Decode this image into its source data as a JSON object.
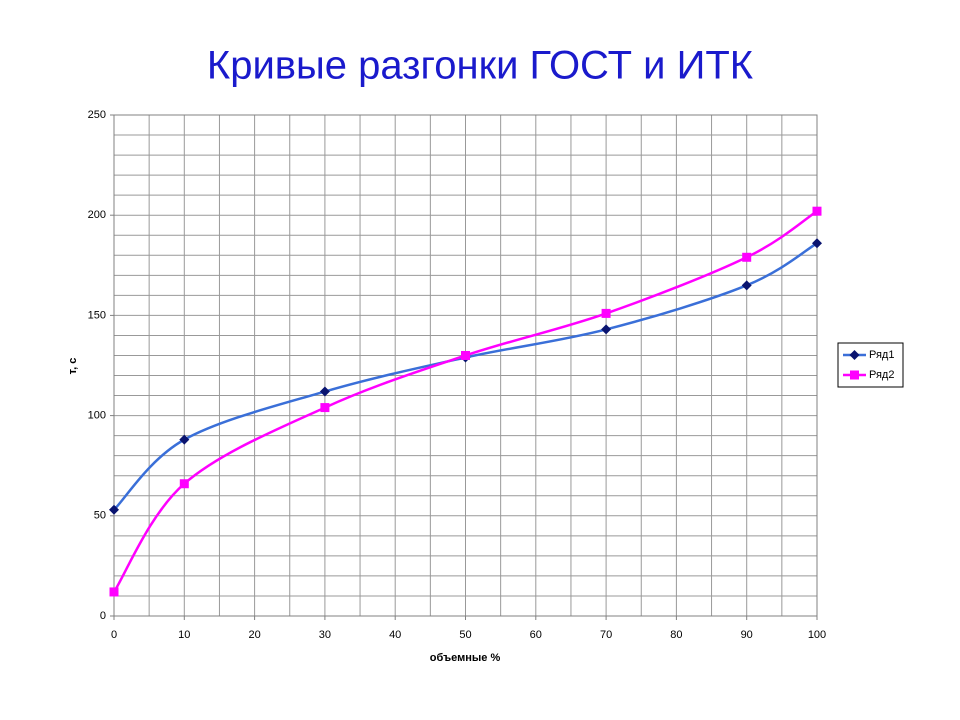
{
  "chart_data": {
    "type": "line",
    "title": "Кривые разгонки ГОСТ и ИТК",
    "x_label": "объемные %",
    "y_label": "т, с",
    "x": [
      0,
      10,
      30,
      50,
      70,
      90,
      100
    ],
    "series": [
      {
        "name": "Ряд1",
        "color": "#3a6fd8",
        "marker_color": "#0a1470",
        "marker": "diamond",
        "values": [
          53,
          88,
          112,
          129,
          143,
          165,
          186
        ]
      },
      {
        "name": "Ряд2",
        "color": "#ff00ff",
        "marker_color": "#ff00ff",
        "marker": "square",
        "values": [
          12,
          66,
          104,
          130,
          151,
          179,
          202
        ]
      }
    ],
    "xlim": [
      0,
      100
    ],
    "xticks": [
      0,
      10,
      20,
      30,
      40,
      50,
      60,
      70,
      80,
      90,
      100
    ],
    "ylim": [
      0,
      250
    ],
    "yticks": [
      0,
      50,
      100,
      150,
      200,
      250
    ],
    "xgrid": [
      0,
      5,
      10,
      15,
      20,
      25,
      30,
      35,
      40,
      45,
      50,
      55,
      60,
      65,
      70,
      75,
      80,
      85,
      90,
      95,
      100
    ],
    "ygrid": [
      0,
      10,
      20,
      30,
      40,
      50,
      60,
      70,
      80,
      90,
      100,
      110,
      120,
      130,
      140,
      150,
      160,
      170,
      180,
      190,
      200,
      210,
      220,
      230,
      240,
      250
    ],
    "grid": true,
    "smooth": true,
    "legend": "right"
  }
}
